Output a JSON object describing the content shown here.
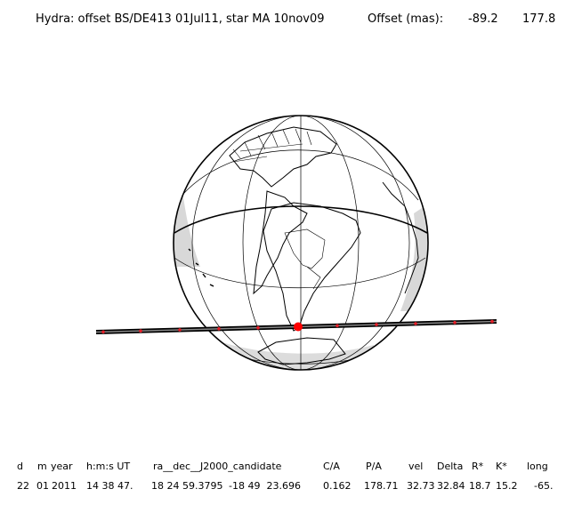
{
  "header": {
    "title": "Hydra: offset BS/DE413 01Jul11, star MA 10nov09",
    "offset_label": "Offset (mas):",
    "offset_x": "-89.2",
    "offset_y": "177.8"
  },
  "table": {
    "columns": [
      "d",
      "m",
      "year",
      "h:m:s UT",
      "ra__dec__J2000_candidate",
      "C/A",
      "P/A",
      "vel",
      "Delta",
      "R*",
      "K*",
      "long"
    ],
    "row": [
      "22",
      "01",
      "2011",
      "14 38 47.",
      "18 24 59.3795",
      "-18 49  23.696",
      "0.162",
      "178.71",
      "32.73",
      "32.84",
      "18.7",
      "15.2",
      "-65."
    ]
  },
  "colors": {
    "ink": "#000000",
    "night_shade": "#d8d8d8",
    "chord_marker": "#e8202a",
    "closest_approach": "#ff0000"
  }
}
